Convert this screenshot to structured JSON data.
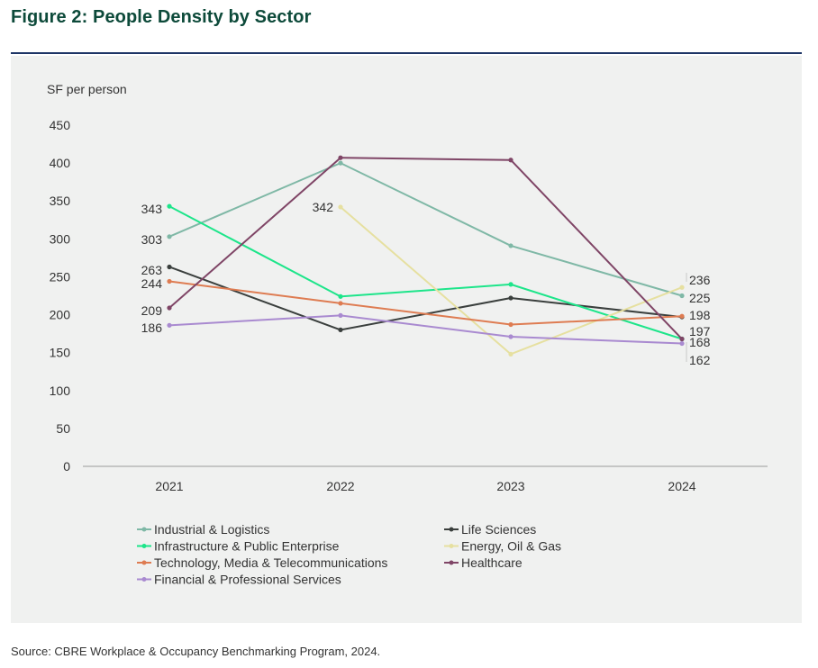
{
  "title": "Figure 2: People Density by Sector",
  "source": "Source: CBRE Workplace & Occupancy Benchmarking Program, 2024.",
  "chart_data": {
    "type": "line",
    "ylabel": "SF per person",
    "xlabel": "",
    "ylim": [
      0,
      450
    ],
    "yticks": [
      0,
      50,
      100,
      150,
      200,
      250,
      300,
      350,
      400,
      450
    ],
    "categories": [
      "2021",
      "2022",
      "2023",
      "2024"
    ],
    "grid": false,
    "legend_position": "bottom",
    "series": [
      {
        "name": "Industrial & Logistics",
        "color": "#7fb8a6",
        "values": [
          303,
          400,
          291,
          225
        ]
      },
      {
        "name": "Life Sciences",
        "color": "#3a3f3d",
        "values": [
          263,
          180,
          222,
          197
        ]
      },
      {
        "name": "Infrastructure & Public Enterprise",
        "color": "#1de58a",
        "values": [
          343,
          224,
          240,
          168
        ]
      },
      {
        "name": "Energy, Oil & Gas",
        "color": "#e6e0a0",
        "values": [
          null,
          342,
          148,
          236
        ]
      },
      {
        "name": "Technology, Media & Telecommunications",
        "color": "#de7c52",
        "values": [
          244,
          215,
          187,
          198
        ]
      },
      {
        "name": "Healthcare",
        "color": "#7f4566",
        "values": [
          209,
          407,
          404,
          168
        ]
      },
      {
        "name": "Financial & Professional Services",
        "color": "#a98ad0",
        "values": [
          186,
          199,
          171,
          162
        ]
      }
    ],
    "data_labels": [
      {
        "series": "Infrastructure & Public Enterprise",
        "category": "2021",
        "text": "343"
      },
      {
        "series": "Industrial & Logistics",
        "category": "2021",
        "text": "303"
      },
      {
        "series": "Life Sciences",
        "category": "2021",
        "text": "263"
      },
      {
        "series": "Technology, Media & Telecommunications",
        "category": "2021",
        "text": "244"
      },
      {
        "series": "Healthcare",
        "category": "2021",
        "text": "209"
      },
      {
        "series": "Financial & Professional Services",
        "category": "2021",
        "text": "186"
      },
      {
        "series": "Energy, Oil & Gas",
        "category": "2022",
        "text": "342"
      },
      {
        "series": "Energy, Oil & Gas",
        "category": "2024",
        "text": "236"
      },
      {
        "series": "Industrial & Logistics",
        "category": "2024",
        "text": "225"
      },
      {
        "series": "Technology, Media & Telecommunications",
        "category": "2024",
        "text": "198"
      },
      {
        "series": "Life Sciences",
        "category": "2024",
        "text": "197"
      },
      {
        "series": "Healthcare",
        "category": "2024",
        "text": "168"
      },
      {
        "series": "Financial & Professional Services",
        "category": "2024",
        "text": "162"
      }
    ]
  }
}
